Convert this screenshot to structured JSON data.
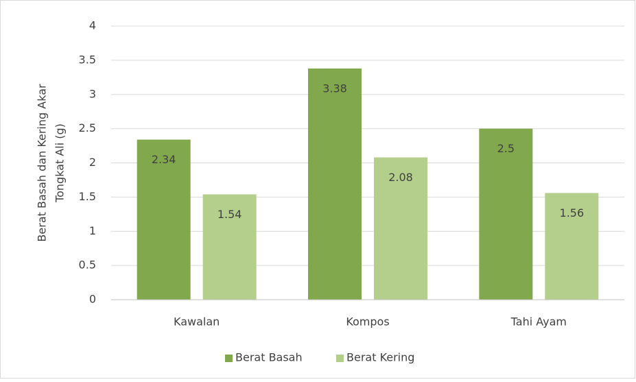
{
  "chart_data": {
    "type": "bar",
    "y_label": [
      "Berat Basah dan Kering Akar",
      "Tongkat Ali (g)"
    ],
    "categories": [
      "Kawalan",
      "Kompos",
      "Tahi Ayam"
    ],
    "series": [
      {
        "name": "Berat Basah",
        "color": "#82a84d",
        "values": [
          2.34,
          3.38,
          2.5
        ]
      },
      {
        "name": "Berat Kering",
        "color": "#b4ce8b",
        "values": [
          1.54,
          2.08,
          1.56
        ]
      }
    ],
    "ylim": [
      0,
      4
    ],
    "yticks": [
      0,
      0.5,
      1,
      1.5,
      2,
      2.5,
      3,
      3.5,
      4
    ],
    "grid": true,
    "legend": "bottom"
  }
}
